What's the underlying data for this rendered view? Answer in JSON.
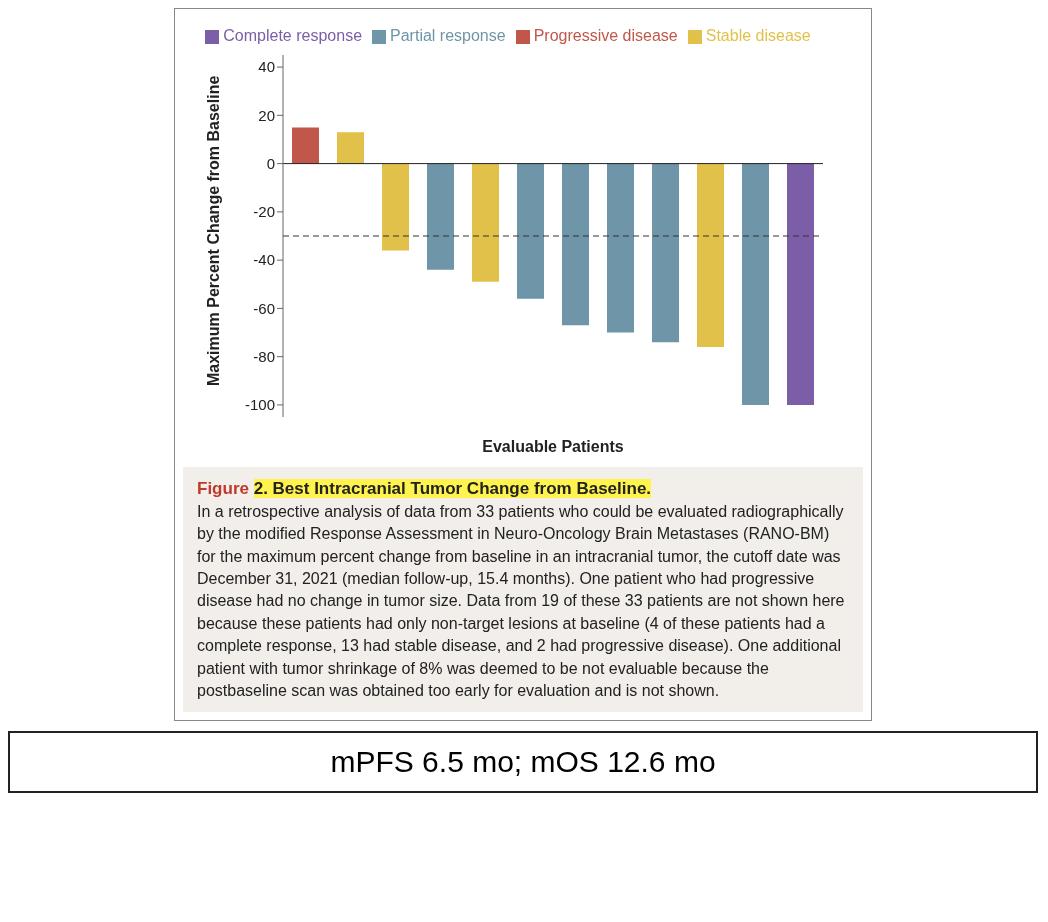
{
  "chart_data": {
    "type": "bar",
    "xlabel": "Evaluable Patients",
    "ylabel": "Maximum Percent Change from Baseline",
    "categories": [
      null,
      null,
      null,
      null,
      null,
      null,
      null,
      null,
      null,
      null,
      null,
      null
    ],
    "series": [
      {
        "name": "Progressive disease",
        "color": "#c0574a",
        "values": [
          15,
          null,
          null,
          null,
          null,
          null,
          null,
          null,
          null,
          null,
          null,
          null
        ]
      },
      {
        "name": "Stable disease",
        "color": "#e2c14a",
        "values": [
          null,
          13,
          -36,
          null,
          -49,
          null,
          null,
          null,
          null,
          -76,
          null,
          null
        ]
      },
      {
        "name": "Partial response",
        "color": "#6f95a8",
        "values": [
          null,
          null,
          null,
          -44,
          null,
          -56,
          -67,
          -70,
          -74,
          null,
          -100,
          null
        ]
      },
      {
        "name": "Complete response",
        "color": "#7b5ea7",
        "values": [
          null,
          null,
          null,
          null,
          null,
          null,
          null,
          null,
          null,
          null,
          null,
          -100
        ]
      }
    ],
    "stacked": true,
    "ylim": [
      -105,
      45
    ],
    "yticks": [
      -100,
      -80,
      -60,
      -40,
      -20,
      0,
      20,
      40
    ],
    "ref_lines": [
      {
        "axis": "y",
        "value": -30,
        "line_style": "dashed",
        "color": "#333333"
      }
    ],
    "legend": "top",
    "annotations": [
      "Figure 2. Best Intracranial Tumor Change from Baseline.",
      "In a retrospective analysis of data from 33 patients who could be evaluated radiographically by the modified Response Assessment in Neuro-Oncology Brain Metastases (RANO-BM) for the maximum percent change from baseline in an intracranial tumor, the cutoff date was December 31, 2021 (median follow-up, 15.4 months). One patient who had progressive disease had no change in tumor size. Data from 19 of these 33 patients are not shown here because these patients had only non-target lesions at baseline (4 of these patients had a complete response, 13 had stable disease, and 2 had progressive disease). One additional patient with tumor shrinkage of 8% was deemed to be not evaluable because the postbaseline scan was obtained too early for evaluation and is not shown.",
      "mPFS 6.5 mo; mOS 12.6 mo"
    ]
  }
}
